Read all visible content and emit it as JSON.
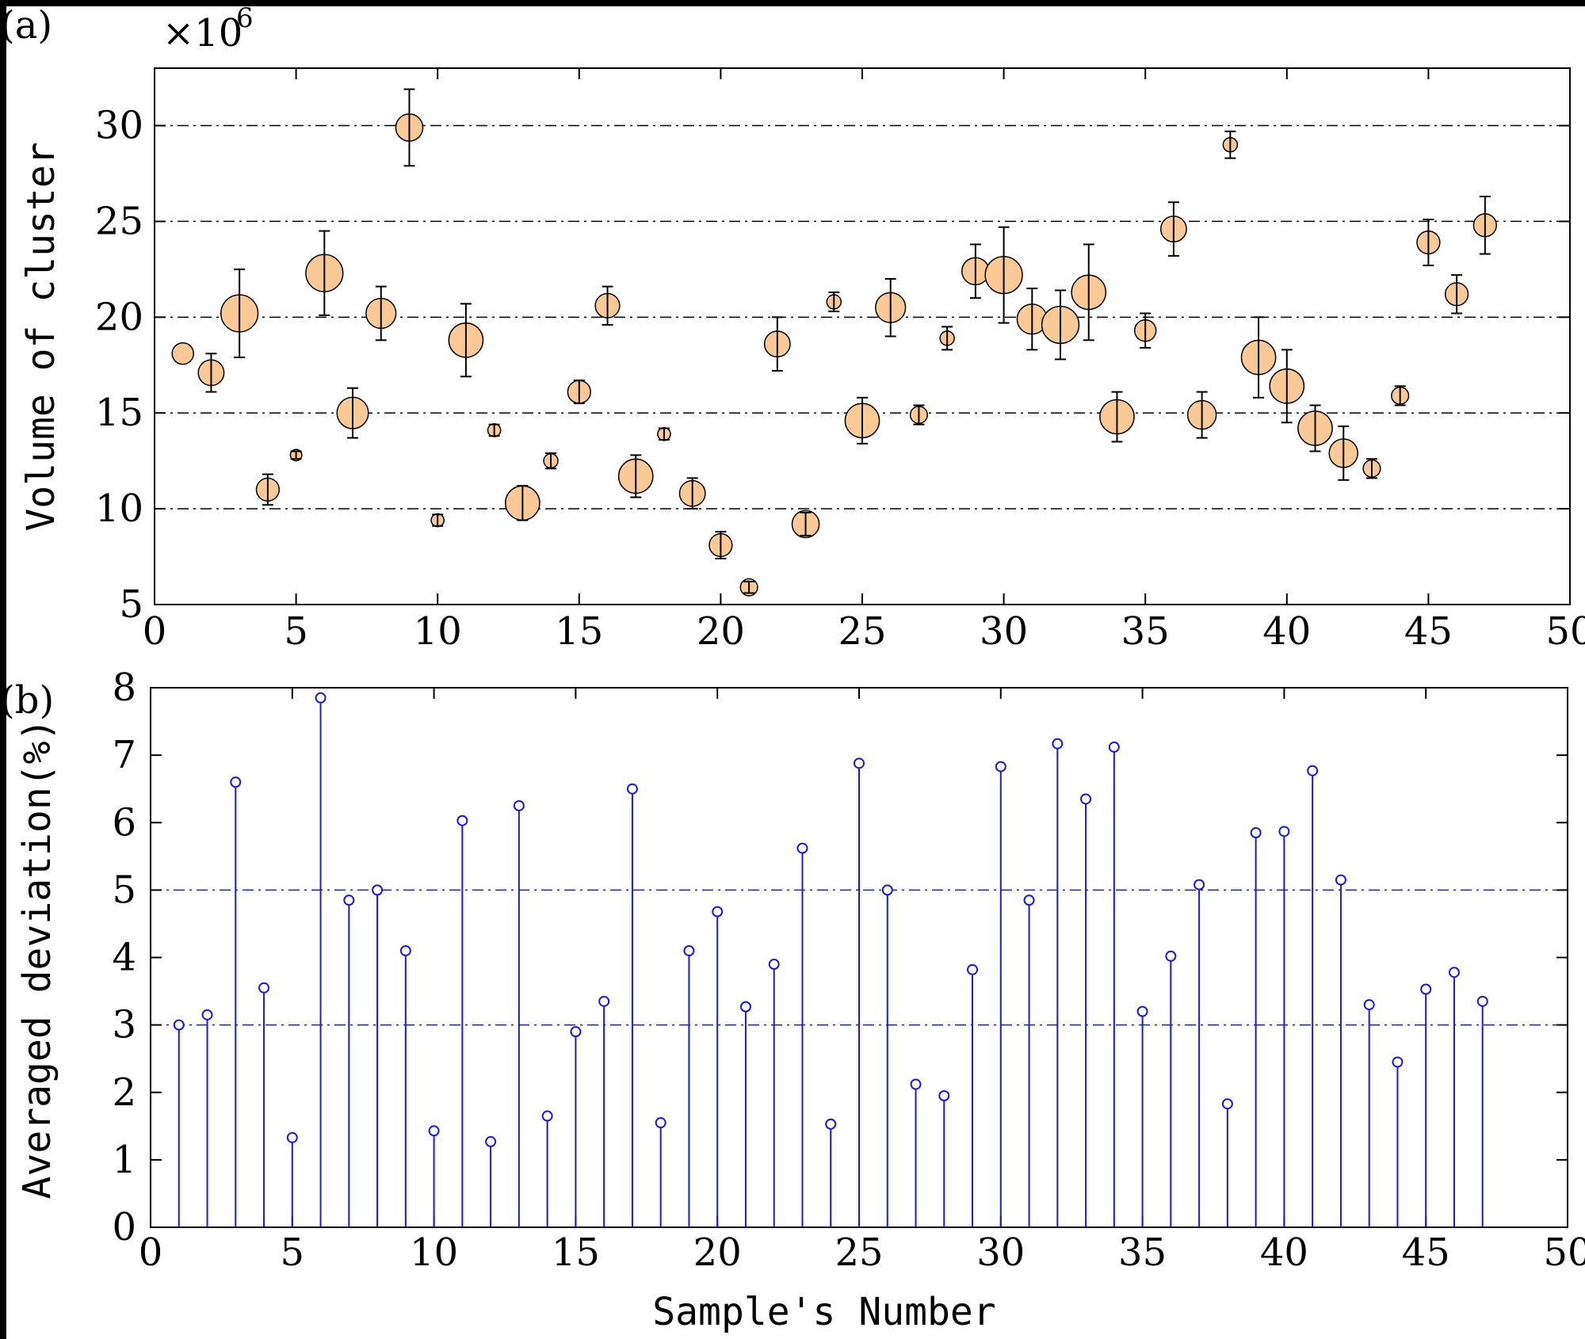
{
  "figure": {
    "panel_a_label": "(a)",
    "panel_b_label": "(b)",
    "exponent_base": "×10",
    "exponent_power": "6"
  },
  "colors": {
    "bubble_fill": "#fbc996",
    "bubble_stroke": "#000000",
    "stem": "#1a1adb",
    "grid_a": "#000000",
    "grid_b": "#1a1adb"
  },
  "chart_data": [
    {
      "type": "scatter",
      "name": "Volume of cluster (bubble with error bars)",
      "ylabel": "Volume of cluster",
      "xlabel": "",
      "y_multiplier": "×10^6",
      "xlim": [
        0,
        50
      ],
      "ylim": [
        5,
        33
      ],
      "xticks": [
        0,
        5,
        10,
        15,
        20,
        25,
        30,
        35,
        40,
        45,
        50
      ],
      "yticks": [
        5,
        10,
        15,
        20,
        25,
        30
      ],
      "gridlines_y": [
        10,
        15,
        20,
        25,
        30
      ],
      "x": [
        1,
        2,
        3,
        4,
        5,
        6,
        7,
        8,
        9,
        10,
        11,
        12,
        13,
        14,
        15,
        16,
        17,
        18,
        19,
        20,
        21,
        22,
        23,
        24,
        25,
        26,
        27,
        28,
        29,
        30,
        31,
        32,
        33,
        34,
        35,
        36,
        37,
        38,
        39,
        40,
        41,
        42,
        43,
        44,
        45,
        46,
        47
      ],
      "y": [
        18.1,
        17.1,
        20.2,
        11.0,
        12.8,
        22.3,
        15.0,
        20.2,
        29.9,
        9.4,
        18.8,
        14.1,
        10.3,
        12.5,
        16.1,
        20.6,
        11.7,
        13.9,
        10.8,
        8.1,
        5.9,
        18.6,
        9.2,
        20.8,
        14.6,
        20.5,
        14.9,
        18.9,
        22.4,
        22.2,
        19.9,
        19.6,
        21.3,
        14.8,
        19.3,
        24.6,
        14.9,
        29.0,
        17.9,
        16.4,
        14.2,
        12.9,
        12.1,
        15.9,
        23.9,
        21.2,
        24.8
      ],
      "err": [
        0.0,
        1.0,
        2.3,
        0.8,
        0.2,
        2.2,
        1.3,
        1.4,
        2.0,
        0.3,
        1.9,
        0.3,
        0.9,
        0.4,
        0.6,
        1.0,
        1.1,
        0.3,
        0.8,
        0.7,
        0.3,
        1.4,
        0.6,
        0.5,
        1.2,
        1.5,
        0.5,
        0.6,
        1.4,
        2.5,
        1.6,
        1.8,
        2.5,
        1.3,
        0.9,
        1.4,
        1.2,
        0.7,
        2.1,
        1.9,
        1.2,
        1.4,
        0.5,
        0.5,
        1.2,
        1.0,
        1.5
      ],
      "size": [
        0.75,
        0.9,
        1.3,
        0.8,
        0.4,
        1.3,
        1.1,
        1.05,
        0.95,
        0.45,
        1.2,
        0.45,
        1.2,
        0.5,
        0.8,
        0.85,
        1.2,
        0.45,
        0.9,
        0.8,
        0.6,
        0.9,
        0.95,
        0.5,
        1.2,
        1.05,
        0.6,
        0.5,
        0.95,
        1.3,
        1.05,
        1.3,
        1.2,
        1.2,
        0.75,
        0.9,
        1.0,
        0.5,
        1.2,
        1.2,
        1.2,
        1.0,
        0.6,
        0.6,
        0.8,
        0.8,
        0.8
      ]
    },
    {
      "type": "stem",
      "name": "Averaged deviation",
      "ylabel": "Averaged deviation(%)",
      "xlabel": "Sample's Number",
      "xlim": [
        0,
        50
      ],
      "ylim": [
        0,
        8
      ],
      "xticks": [
        0,
        5,
        10,
        15,
        20,
        25,
        30,
        35,
        40,
        45,
        50
      ],
      "yticks": [
        0,
        1,
        2,
        3,
        4,
        5,
        6,
        7,
        8
      ],
      "gridlines_y": [
        3,
        5
      ],
      "x": [
        1,
        2,
        3,
        4,
        5,
        6,
        7,
        8,
        9,
        10,
        11,
        12,
        13,
        14,
        15,
        16,
        17,
        18,
        19,
        20,
        21,
        22,
        23,
        24,
        25,
        26,
        27,
        28,
        29,
        30,
        31,
        32,
        33,
        34,
        35,
        36,
        37,
        38,
        39,
        40,
        41,
        42,
        43,
        44,
        45,
        46,
        47
      ],
      "values": [
        3.0,
        3.15,
        6.6,
        3.55,
        1.33,
        7.85,
        4.85,
        5.0,
        4.1,
        1.43,
        6.03,
        1.27,
        6.25,
        1.65,
        2.9,
        3.35,
        6.5,
        1.55,
        4.1,
        4.68,
        3.27,
        3.9,
        5.62,
        1.53,
        6.88,
        5.0,
        2.12,
        1.95,
        3.82,
        6.83,
        4.85,
        7.17,
        6.35,
        7.12,
        3.2,
        4.02,
        5.08,
        1.83,
        5.85,
        5.87,
        6.77,
        5.15,
        3.3,
        2.45,
        3.53,
        3.78,
        3.35
      ]
    }
  ]
}
